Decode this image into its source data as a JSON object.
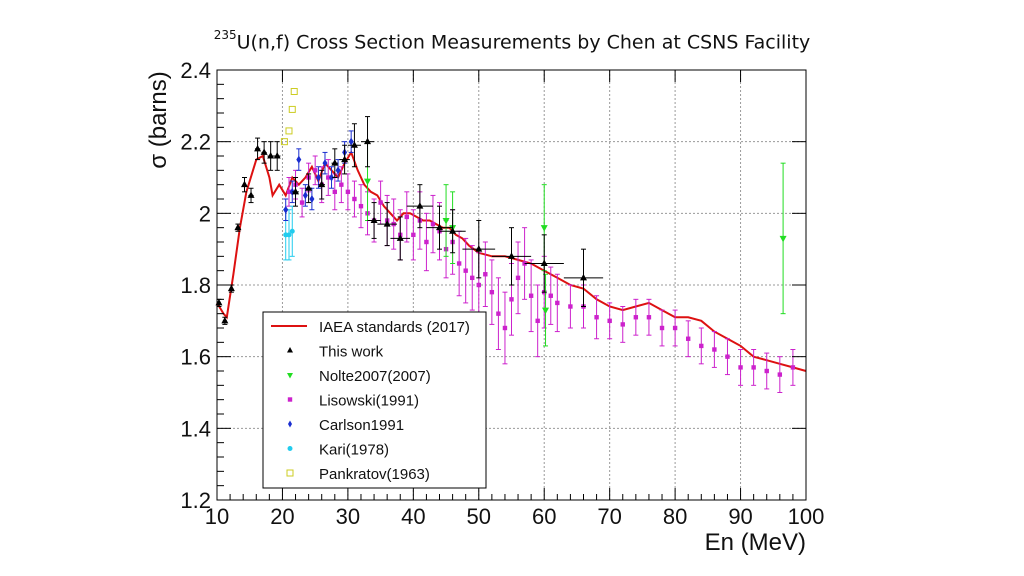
{
  "slide": {
    "title_sup": "235",
    "title_main": "U(n,f) Cross Section Measurements by Chen at CSNS Facility"
  },
  "chart_data": {
    "type": "scatter",
    "title": "235U(n,f) Cross Section Measurements by Chen at CSNS Facility",
    "xlabel": "En (MeV)",
    "ylabel": "σ (barns)",
    "xlim": [
      10,
      100
    ],
    "ylim": [
      1.2,
      2.4
    ],
    "xticks": [
      10,
      20,
      30,
      40,
      50,
      60,
      70,
      80,
      90,
      100
    ],
    "yticks": [
      1.2,
      1.4,
      1.6,
      1.8,
      2,
      2.2,
      2.4
    ],
    "ytick_labels": [
      "1.2",
      "1.4",
      "1.6",
      "1.8",
      "2",
      "2.2",
      "2.4"
    ],
    "grid": true,
    "legend_position": "bottom-left",
    "colors": {
      "iaea": "#dd1111",
      "this_work": "#000000",
      "nolte": "#22dd22",
      "lisowski": "#cc22cc",
      "carlson": "#1a2ed0",
      "kari": "#22ccee",
      "pankratov": "#cccc22"
    },
    "series": [
      {
        "name": "IAEA standards (2017)",
        "key": "iaea",
        "kind": "line",
        "x": [
          10,
          11,
          11.5,
          12.5,
          13.5,
          14.5,
          15.5,
          16,
          17,
          18,
          18.5,
          19.5,
          20.5,
          21.5,
          22.5,
          23.5,
          24.5,
          25.5,
          26.5,
          27.5,
          28.5,
          29.5,
          30.5,
          31.5,
          32.5,
          33.5,
          34.5,
          35.5,
          36.5,
          37.5,
          38.5,
          39.5,
          40.5,
          41.5,
          42.5,
          43.5,
          44.5,
          45.5,
          46.5,
          47.5,
          48.5,
          50,
          52,
          54,
          56,
          58,
          60,
          62,
          64,
          66,
          68,
          70,
          72,
          74,
          76,
          78,
          80,
          82,
          84,
          86,
          88,
          90,
          92,
          94,
          96,
          98,
          100
        ],
        "y": [
          1.75,
          1.72,
          1.71,
          1.83,
          1.96,
          2.06,
          2.12,
          2.15,
          2.16,
          2.1,
          2.05,
          2.08,
          2.05,
          2.1,
          2.08,
          2.1,
          2.13,
          2.09,
          2.14,
          2.12,
          2.1,
          2.14,
          2.17,
          2.12,
          2.08,
          2.06,
          2.05,
          2.02,
          2.0,
          1.98,
          2.0,
          2.0,
          1.99,
          1.98,
          1.98,
          1.97,
          1.96,
          1.96,
          1.94,
          1.93,
          1.91,
          1.89,
          1.88,
          1.88,
          1.87,
          1.86,
          1.84,
          1.82,
          1.8,
          1.79,
          1.76,
          1.74,
          1.73,
          1.74,
          1.75,
          1.73,
          1.71,
          1.71,
          1.7,
          1.67,
          1.65,
          1.63,
          1.6,
          1.59,
          1.58,
          1.57,
          1.56
        ]
      },
      {
        "name": "This work",
        "key": "this_work",
        "kind": "up-triangle",
        "x": [
          10.3,
          11.2,
          12.2,
          13.2,
          14.2,
          15.2,
          16.2,
          17.2,
          18.2,
          19.2,
          22,
          24,
          26,
          28,
          29.5,
          31,
          33,
          34,
          36,
          38,
          41,
          44,
          46,
          50,
          55,
          60,
          66
        ],
        "y": [
          1.75,
          1.7,
          1.79,
          1.96,
          2.08,
          2.05,
          2.18,
          2.17,
          2.16,
          2.16,
          2.06,
          2.07,
          2.08,
          2.14,
          2.15,
          2.19,
          2.2,
          1.98,
          1.97,
          1.93,
          2.02,
          1.96,
          1.95,
          1.9,
          1.88,
          1.86,
          1.82
        ],
        "yerr": [
          0.01,
          0.01,
          0.01,
          0.01,
          0.02,
          0.02,
          0.03,
          0.03,
          0.04,
          0.04,
          0.04,
          0.04,
          0.04,
          0.04,
          0.04,
          0.06,
          0.07,
          0.05,
          0.06,
          0.06,
          0.06,
          0.06,
          0.06,
          0.08,
          0.08,
          0.08,
          0.08
        ],
        "xerr": [
          0.3,
          0.3,
          0.3,
          0.3,
          0.3,
          0.4,
          0.4,
          0.4,
          0.5,
          0.5,
          0.5,
          0.5,
          0.5,
          0.5,
          0.8,
          1,
          1,
          1,
          1.5,
          1.5,
          2,
          2,
          2,
          2.5,
          3,
          3,
          3
        ]
      },
      {
        "name": "Nolte2007(2007)",
        "key": "nolte",
        "kind": "down-triangle",
        "x": [
          33,
          45,
          46,
          60,
          60.2,
          96.5
        ],
        "y": [
          2.09,
          1.98,
          1.96,
          1.96,
          1.73,
          1.93
        ],
        "yerr": [
          0.11,
          0.1,
          0.1,
          0.12,
          0.1,
          0.21
        ]
      },
      {
        "name": "Lisowski(1991)",
        "key": "lisowski",
        "kind": "square",
        "x": [
          21,
          22,
          23,
          24,
          25,
          26,
          27,
          28,
          29,
          30,
          31,
          32,
          33,
          34,
          35,
          36,
          37,
          38,
          39,
          40,
          41,
          42,
          43,
          44,
          45,
          46,
          47,
          48,
          49,
          50,
          51,
          52,
          53,
          54,
          55,
          56,
          57,
          58,
          59,
          60,
          61,
          62,
          64,
          66,
          68,
          70,
          72,
          74,
          76,
          78,
          80,
          82,
          84,
          86,
          88,
          90,
          92,
          94,
          96,
          98
        ],
        "y": [
          2.06,
          2.08,
          2.03,
          2.1,
          2.12,
          2.08,
          2.1,
          2.06,
          2.08,
          2.06,
          2.04,
          2.02,
          2.0,
          1.98,
          2.03,
          1.98,
          1.97,
          1.94,
          1.99,
          1.94,
          1.98,
          1.92,
          1.97,
          1.95,
          1.9,
          1.92,
          1.86,
          1.84,
          1.82,
          1.8,
          1.83,
          1.78,
          1.72,
          1.68,
          1.76,
          1.82,
          1.86,
          1.77,
          1.7,
          1.78,
          1.77,
          1.75,
          1.74,
          1.74,
          1.71,
          1.7,
          1.69,
          1.71,
          1.71,
          1.68,
          1.68,
          1.65,
          1.63,
          1.62,
          1.6,
          1.57,
          1.57,
          1.56,
          1.55,
          1.57
        ],
        "yerr": [
          0.04,
          0.04,
          0.04,
          0.04,
          0.04,
          0.05,
          0.05,
          0.05,
          0.05,
          0.05,
          0.05,
          0.06,
          0.06,
          0.06,
          0.06,
          0.07,
          0.07,
          0.07,
          0.07,
          0.07,
          0.08,
          0.08,
          0.08,
          0.08,
          0.08,
          0.09,
          0.09,
          0.09,
          0.09,
          0.09,
          0.09,
          0.09,
          0.1,
          0.1,
          0.1,
          0.1,
          0.1,
          0.1,
          0.1,
          0.1,
          0.08,
          0.08,
          0.06,
          0.06,
          0.06,
          0.05,
          0.05,
          0.05,
          0.05,
          0.05,
          0.05,
          0.05,
          0.05,
          0.05,
          0.05,
          0.05,
          0.05,
          0.05,
          0.05,
          0.05
        ]
      },
      {
        "name": "Carlson1991",
        "key": "carlson",
        "kind": "diamond",
        "x": [
          20.5,
          21.5,
          22.5,
          23.5,
          24.5,
          25.5,
          26.5,
          27.5,
          28.5,
          29.5,
          30.5
        ],
        "y": [
          2.01,
          2.06,
          2.15,
          2.05,
          2.04,
          2.1,
          2.14,
          2.1,
          2.12,
          2.17,
          2.2
        ],
        "yerr": [
          0.03,
          0.03,
          0.03,
          0.03,
          0.03,
          0.03,
          0.03,
          0.03,
          0.03,
          0.03,
          0.03
        ]
      },
      {
        "name": "Kari(1978)",
        "key": "kari",
        "kind": "circle",
        "x": [
          20.5,
          21,
          21.5
        ],
        "y": [
          1.94,
          1.94,
          1.95
        ],
        "yerr": [
          0.07,
          0.07,
          0.07
        ]
      },
      {
        "name": "Pankratov(1963)",
        "key": "pankratov",
        "kind": "open-square",
        "x": [
          20.3,
          21,
          21.5,
          21.8
        ],
        "y": [
          2.2,
          2.23,
          2.29,
          2.34
        ],
        "yerr": [
          0,
          0,
          0,
          0
        ]
      }
    ]
  }
}
